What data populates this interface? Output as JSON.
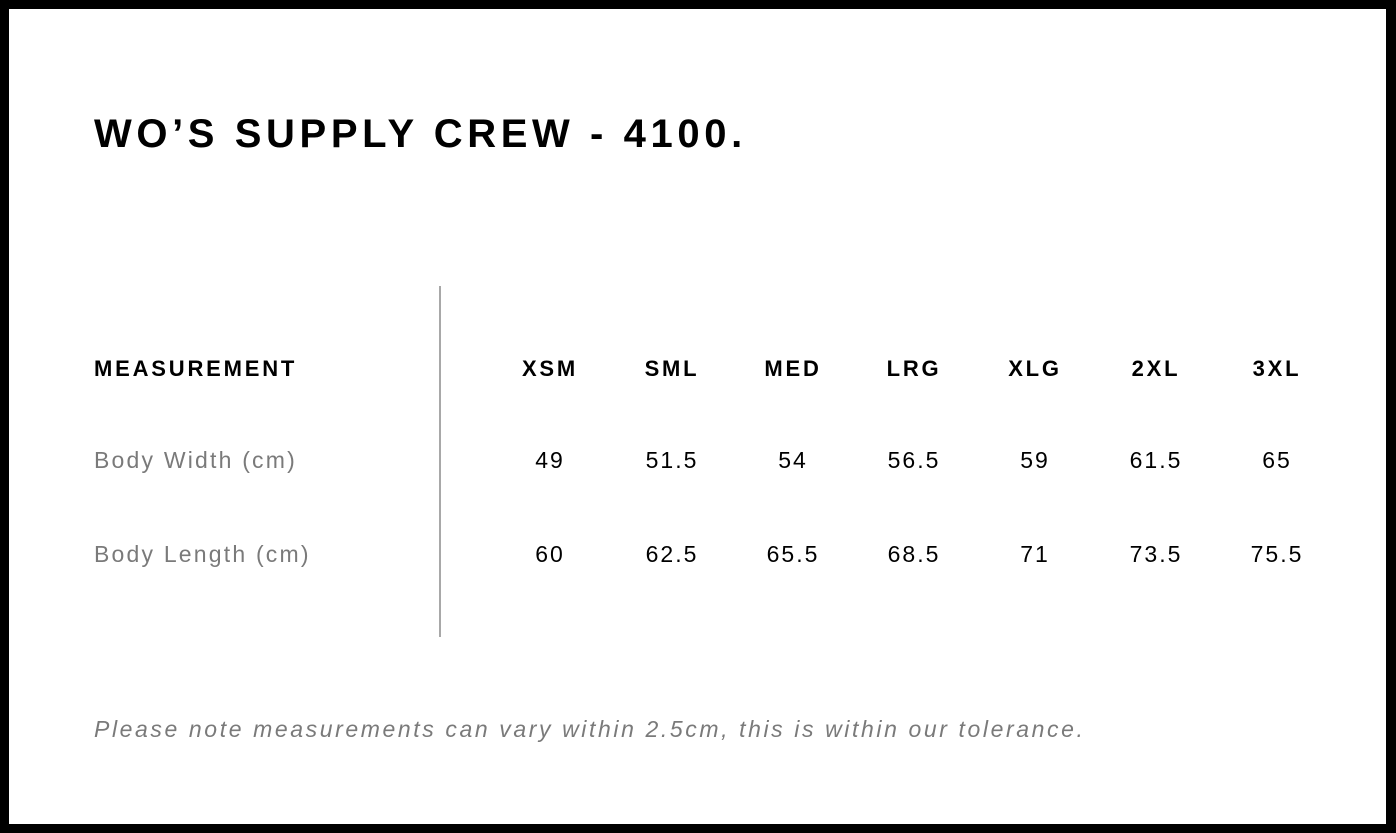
{
  "title": "WO’S SUPPLY CREW - 4100.",
  "table": {
    "header_label": "MEASUREMENT",
    "sizes": [
      "XSM",
      "SML",
      "MED",
      "LRG",
      "XLG",
      "2XL",
      "3XL"
    ],
    "rows": [
      {
        "label": "Body Width (cm)",
        "values": [
          "49",
          "51.5",
          "54",
          "56.5",
          "59",
          "61.5",
          "65"
        ]
      },
      {
        "label": "Body Length (cm)",
        "values": [
          "60",
          "62.5",
          "65.5",
          "68.5",
          "71",
          "73.5",
          "75.5"
        ]
      }
    ]
  },
  "note": "Please note measurements can vary within 2.5cm, this is within our tolerance."
}
